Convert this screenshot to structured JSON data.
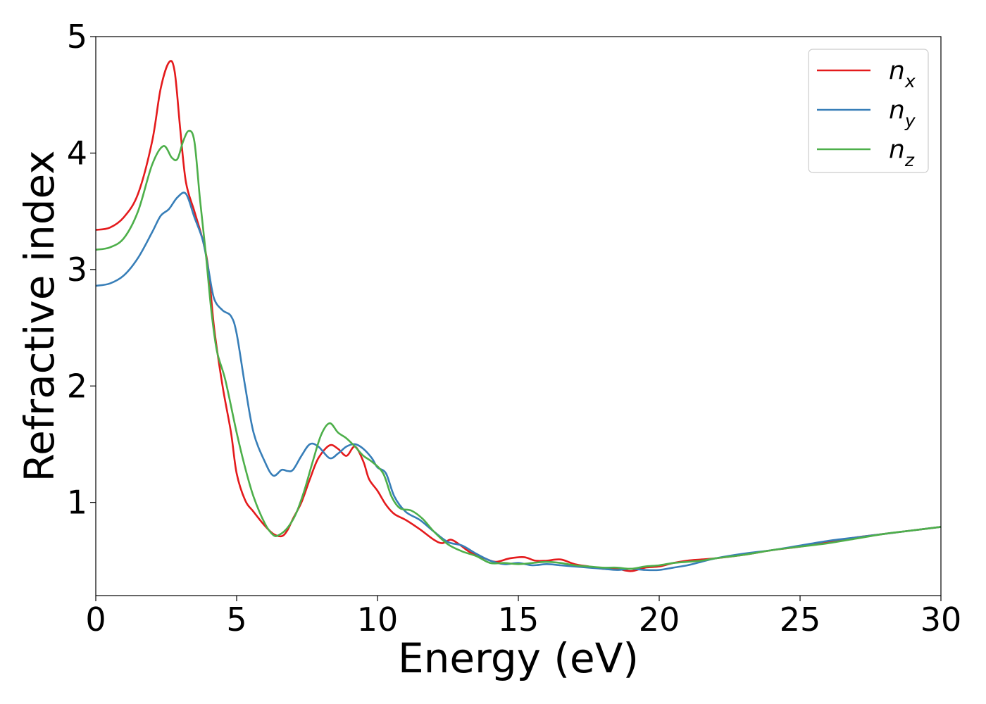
{
  "chart_data": {
    "type": "line",
    "title": "",
    "xlabel": "Energy (eV)",
    "ylabel": "Refractive index",
    "xlim": [
      0,
      30
    ],
    "ylim": [
      0.2,
      5
    ],
    "xticks": [
      0,
      5,
      10,
      15,
      20,
      25,
      30
    ],
    "yticks": [
      1,
      2,
      3,
      4,
      5
    ],
    "grid": false,
    "legend_position": "top-right",
    "series": [
      {
        "name": "n_x",
        "label_base": "n",
        "label_sub": "x",
        "color": "#e41a1c",
        "points": [
          [
            0,
            3.34
          ],
          [
            0.5,
            3.36
          ],
          [
            1.0,
            3.45
          ],
          [
            1.5,
            3.65
          ],
          [
            2.0,
            4.1
          ],
          [
            2.3,
            4.55
          ],
          [
            2.6,
            4.78
          ],
          [
            2.8,
            4.7
          ],
          [
            3.0,
            4.2
          ],
          [
            3.2,
            3.75
          ],
          [
            3.5,
            3.5
          ],
          [
            3.8,
            3.25
          ],
          [
            4.0,
            3.0
          ],
          [
            4.2,
            2.5
          ],
          [
            4.5,
            2.0
          ],
          [
            4.8,
            1.6
          ],
          [
            5.0,
            1.25
          ],
          [
            5.3,
            1.02
          ],
          [
            5.6,
            0.92
          ],
          [
            6.0,
            0.8
          ],
          [
            6.3,
            0.73
          ],
          [
            6.6,
            0.71
          ],
          [
            6.8,
            0.76
          ],
          [
            7.0,
            0.86
          ],
          [
            7.3,
            1.0
          ],
          [
            7.6,
            1.2
          ],
          [
            7.9,
            1.38
          ],
          [
            8.3,
            1.49
          ],
          [
            8.6,
            1.46
          ],
          [
            8.9,
            1.4
          ],
          [
            9.2,
            1.48
          ],
          [
            9.5,
            1.35
          ],
          [
            9.7,
            1.2
          ],
          [
            10.0,
            1.1
          ],
          [
            10.3,
            0.98
          ],
          [
            10.6,
            0.9
          ],
          [
            11.0,
            0.85
          ],
          [
            11.5,
            0.77
          ],
          [
            12.0,
            0.68
          ],
          [
            12.3,
            0.65
          ],
          [
            12.6,
            0.68
          ],
          [
            12.9,
            0.64
          ],
          [
            13.3,
            0.57
          ],
          [
            13.8,
            0.52
          ],
          [
            14.2,
            0.49
          ],
          [
            14.7,
            0.52
          ],
          [
            15.2,
            0.53
          ],
          [
            15.6,
            0.5
          ],
          [
            16.0,
            0.5
          ],
          [
            16.5,
            0.51
          ],
          [
            17.0,
            0.47
          ],
          [
            17.5,
            0.45
          ],
          [
            18.0,
            0.43
          ],
          [
            18.5,
            0.43
          ],
          [
            19.0,
            0.41
          ],
          [
            19.5,
            0.44
          ],
          [
            20.0,
            0.45
          ],
          [
            20.5,
            0.48
          ],
          [
            21.0,
            0.5
          ],
          [
            21.5,
            0.51
          ],
          [
            22.0,
            0.52
          ],
          [
            23.0,
            0.55
          ],
          [
            24.0,
            0.59
          ],
          [
            25.0,
            0.62
          ],
          [
            26.0,
            0.66
          ],
          [
            27.0,
            0.7
          ],
          [
            28.0,
            0.73
          ],
          [
            29.0,
            0.76
          ],
          [
            30.0,
            0.79
          ]
        ]
      },
      {
        "name": "n_y",
        "label_base": "n",
        "label_sub": "y",
        "color": "#377eb8",
        "points": [
          [
            0,
            2.86
          ],
          [
            0.5,
            2.88
          ],
          [
            1.0,
            2.95
          ],
          [
            1.5,
            3.1
          ],
          [
            2.0,
            3.32
          ],
          [
            2.3,
            3.46
          ],
          [
            2.6,
            3.52
          ],
          [
            2.9,
            3.62
          ],
          [
            3.2,
            3.65
          ],
          [
            3.5,
            3.45
          ],
          [
            3.8,
            3.25
          ],
          [
            4.0,
            3.0
          ],
          [
            4.2,
            2.75
          ],
          [
            4.5,
            2.65
          ],
          [
            4.8,
            2.6
          ],
          [
            5.0,
            2.45
          ],
          [
            5.3,
            2.0
          ],
          [
            5.6,
            1.6
          ],
          [
            6.0,
            1.35
          ],
          [
            6.3,
            1.23
          ],
          [
            6.6,
            1.28
          ],
          [
            6.8,
            1.27
          ],
          [
            7.0,
            1.28
          ],
          [
            7.3,
            1.4
          ],
          [
            7.6,
            1.5
          ],
          [
            7.9,
            1.48
          ],
          [
            8.3,
            1.38
          ],
          [
            8.6,
            1.42
          ],
          [
            8.9,
            1.48
          ],
          [
            9.2,
            1.5
          ],
          [
            9.5,
            1.46
          ],
          [
            9.8,
            1.38
          ],
          [
            10.0,
            1.3
          ],
          [
            10.3,
            1.25
          ],
          [
            10.6,
            1.05
          ],
          [
            11.0,
            0.92
          ],
          [
            11.5,
            0.85
          ],
          [
            12.0,
            0.75
          ],
          [
            12.5,
            0.66
          ],
          [
            13.0,
            0.63
          ],
          [
            13.5,
            0.56
          ],
          [
            14.0,
            0.5
          ],
          [
            14.5,
            0.47
          ],
          [
            15.0,
            0.48
          ],
          [
            15.5,
            0.46
          ],
          [
            16.0,
            0.47
          ],
          [
            16.5,
            0.46
          ],
          [
            17.0,
            0.45
          ],
          [
            17.5,
            0.44
          ],
          [
            18.0,
            0.43
          ],
          [
            18.5,
            0.42
          ],
          [
            19.0,
            0.43
          ],
          [
            19.5,
            0.42
          ],
          [
            20.0,
            0.42
          ],
          [
            20.5,
            0.44
          ],
          [
            21.0,
            0.46
          ],
          [
            21.5,
            0.49
          ],
          [
            22.0,
            0.52
          ],
          [
            23.0,
            0.56
          ],
          [
            24.0,
            0.59
          ],
          [
            25.0,
            0.63
          ],
          [
            26.0,
            0.67
          ],
          [
            27.0,
            0.7
          ],
          [
            28.0,
            0.73
          ],
          [
            29.0,
            0.76
          ],
          [
            30.0,
            0.79
          ]
        ]
      },
      {
        "name": "n_z",
        "label_base": "n",
        "label_sub": "z",
        "color": "#4daf4a",
        "points": [
          [
            0,
            3.17
          ],
          [
            0.5,
            3.19
          ],
          [
            1.0,
            3.27
          ],
          [
            1.5,
            3.5
          ],
          [
            2.0,
            3.9
          ],
          [
            2.4,
            4.06
          ],
          [
            2.7,
            3.96
          ],
          [
            2.9,
            3.95
          ],
          [
            3.1,
            4.1
          ],
          [
            3.3,
            4.19
          ],
          [
            3.5,
            4.1
          ],
          [
            3.7,
            3.6
          ],
          [
            3.9,
            3.15
          ],
          [
            4.1,
            2.65
          ],
          [
            4.3,
            2.3
          ],
          [
            4.6,
            2.05
          ],
          [
            5.0,
            1.6
          ],
          [
            5.3,
            1.3
          ],
          [
            5.6,
            1.05
          ],
          [
            6.0,
            0.82
          ],
          [
            6.3,
            0.72
          ],
          [
            6.5,
            0.72
          ],
          [
            6.8,
            0.78
          ],
          [
            7.1,
            0.9
          ],
          [
            7.4,
            1.1
          ],
          [
            7.7,
            1.35
          ],
          [
            8.0,
            1.58
          ],
          [
            8.3,
            1.68
          ],
          [
            8.6,
            1.6
          ],
          [
            8.9,
            1.55
          ],
          [
            9.2,
            1.48
          ],
          [
            9.5,
            1.4
          ],
          [
            9.8,
            1.35
          ],
          [
            10.2,
            1.25
          ],
          [
            10.5,
            1.05
          ],
          [
            10.8,
            0.95
          ],
          [
            11.2,
            0.93
          ],
          [
            11.6,
            0.86
          ],
          [
            12.0,
            0.75
          ],
          [
            12.5,
            0.64
          ],
          [
            13.0,
            0.58
          ],
          [
            13.5,
            0.54
          ],
          [
            14.0,
            0.48
          ],
          [
            14.5,
            0.48
          ],
          [
            15.0,
            0.47
          ],
          [
            15.5,
            0.48
          ],
          [
            16.0,
            0.49
          ],
          [
            16.5,
            0.48
          ],
          [
            17.0,
            0.46
          ],
          [
            17.5,
            0.45
          ],
          [
            18.0,
            0.44
          ],
          [
            18.5,
            0.44
          ],
          [
            19.0,
            0.43
          ],
          [
            19.5,
            0.45
          ],
          [
            20.0,
            0.46
          ],
          [
            20.5,
            0.48
          ],
          [
            21.0,
            0.49
          ],
          [
            21.5,
            0.5
          ],
          [
            22.0,
            0.52
          ],
          [
            23.0,
            0.55
          ],
          [
            24.0,
            0.59
          ],
          [
            25.0,
            0.62
          ],
          [
            26.0,
            0.65
          ],
          [
            27.0,
            0.69
          ],
          [
            28.0,
            0.73
          ],
          [
            29.0,
            0.76
          ],
          [
            30.0,
            0.79
          ]
        ]
      }
    ]
  }
}
